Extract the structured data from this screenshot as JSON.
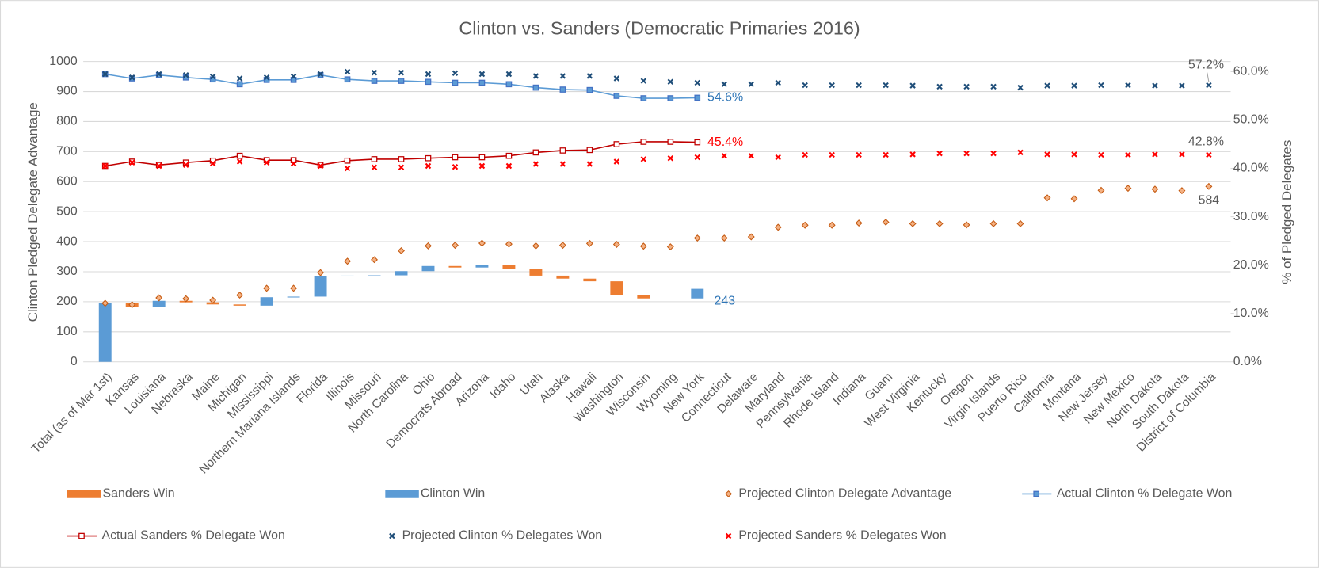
{
  "chart_data": {
    "type": "combo",
    "title": "Clinton vs. Sanders (Democratic Primaries 2016)",
    "ylabel": "Clinton Pledged Delegate Advantage",
    "y2label": "% of Pledged Delegates",
    "categories": [
      "Total (as of Mar 1st)",
      "Kansas",
      "Louisiana",
      "Nebraska",
      "Maine",
      "Michigan",
      "Mississippi",
      "Northern Mariana Islands",
      "Florida",
      "Illinois",
      "Missouri",
      "North Carolina",
      "Ohio",
      "Democrats Abroad",
      "Arizona",
      "Idaho",
      "Utah",
      "Alaska",
      "Hawaii",
      "Washington",
      "Wisconsin",
      "Wyoming",
      "New York",
      "Connecticut",
      "Delaware",
      "Maryland",
      "Pennsylvania",
      "Rhode Island",
      "Indiana",
      "Guam",
      "West Virginia",
      "Kentucky",
      "Oregon",
      "Virgin Islands",
      "Puerto Rico",
      "California",
      "Montana",
      "New Jersey",
      "New Mexico",
      "North Dakota",
      "South Dakota",
      "District of Columbia"
    ],
    "ylim": [
      0,
      1000
    ],
    "yticks": [
      0,
      100,
      200,
      300,
      400,
      500,
      600,
      700,
      800,
      900,
      1000
    ],
    "y2lim": [
      0,
      62.1
    ],
    "y2ticks": [
      {
        "value": 0,
        "label": "0.0%"
      },
      {
        "value": 10,
        "label": "10.0%"
      },
      {
        "value": 20,
        "label": "20.0%"
      },
      {
        "value": 30,
        "label": "30.0%"
      },
      {
        "value": 40,
        "label": "40.0%"
      },
      {
        "value": 50,
        "label": "50.0%"
      },
      {
        "value": 60,
        "label": "60.0%"
      }
    ],
    "grid": true,
    "legend": "bottom",
    "series": [
      {
        "name": "Sanders Win",
        "type": "waterfall",
        "color": "#ED7D31",
        "values": [
          null,
          -13,
          null,
          -5,
          -7,
          -4,
          null,
          null,
          null,
          null,
          null,
          null,
          null,
          -5,
          null,
          -13,
          -22,
          -10,
          -9,
          -47,
          -10,
          null,
          null,
          null,
          null,
          null,
          null,
          null,
          null,
          null,
          null,
          null,
          null,
          null,
          null,
          null,
          null,
          null,
          null,
          null,
          null,
          null
        ]
      },
      {
        "name": "Clinton Win",
        "type": "waterfall",
        "color": "#5B9BD5",
        "values": [
          195,
          null,
          21,
          null,
          null,
          null,
          28,
          2,
          68,
          2,
          1,
          14,
          17,
          null,
          8,
          null,
          null,
          null,
          null,
          null,
          null,
          null,
          32,
          null,
          null,
          null,
          null,
          null,
          null,
          null,
          null,
          null,
          null,
          null,
          null,
          null,
          null,
          null,
          null,
          null,
          null,
          null
        ]
      },
      {
        "name": "Projected Clinton Delegate Advantage",
        "type": "scatter",
        "marker": "diamond",
        "color": "#C55A11",
        "values": [
          195,
          190,
          213,
          210,
          205,
          222,
          245,
          245,
          297,
          335,
          340,
          370,
          386,
          388,
          395,
          392,
          386,
          388,
          394,
          391,
          385,
          383,
          412,
          412,
          416,
          448,
          455,
          455,
          462,
          465,
          460,
          460,
          456,
          460,
          460,
          546,
          543,
          571,
          578,
          575,
          570,
          584
        ],
        "value_labels": [
          null,
          null,
          null,
          null,
          null,
          null,
          null,
          null,
          null,
          null,
          null,
          null,
          null,
          null,
          null,
          null,
          null,
          null,
          null,
          null,
          null,
          null,
          null,
          null,
          null,
          null,
          null,
          null,
          null,
          null,
          null,
          null,
          null,
          null,
          null,
          null,
          null,
          null,
          null,
          null,
          null,
          "584"
        ]
      },
      {
        "name": "Actual Clinton % Delegate Won",
        "type": "line",
        "marker": "square",
        "color": "#5B9BD5",
        "axis": "y2",
        "values": [
          59.5,
          58.6,
          59.3,
          58.8,
          58.4,
          57.4,
          58.3,
          58.3,
          59.3,
          58.4,
          58.1,
          58.1,
          57.9,
          57.7,
          57.7,
          57.4,
          56.7,
          56.3,
          56.2,
          55.0,
          54.5,
          54.5,
          54.6,
          null,
          null,
          null,
          null,
          null,
          null,
          null,
          null,
          null,
          null,
          null,
          null,
          null,
          null,
          null,
          null,
          null,
          null,
          null
        ],
        "value_labels": [
          null,
          null,
          null,
          null,
          null,
          null,
          null,
          null,
          null,
          null,
          null,
          null,
          null,
          null,
          null,
          null,
          null,
          null,
          null,
          null,
          null,
          null,
          "54.6%",
          null,
          null,
          null,
          null,
          null,
          null,
          null,
          null,
          null,
          null,
          null,
          null,
          null,
          null,
          null,
          null,
          null,
          null,
          null
        ]
      },
      {
        "name": "Actual Sanders % Delegate Won",
        "type": "line",
        "marker": "square",
        "color": "#C00000",
        "axis": "y2",
        "values": [
          40.5,
          41.4,
          40.7,
          41.2,
          41.6,
          42.6,
          41.7,
          41.7,
          40.7,
          41.6,
          41.9,
          41.9,
          42.1,
          42.3,
          42.3,
          42.6,
          43.3,
          43.7,
          43.8,
          45.0,
          45.5,
          45.5,
          45.4,
          null,
          null,
          null,
          null,
          null,
          null,
          null,
          null,
          null,
          null,
          null,
          null,
          null,
          null,
          null,
          null,
          null,
          null,
          null
        ],
        "value_labels": [
          null,
          null,
          null,
          null,
          null,
          null,
          null,
          null,
          null,
          null,
          null,
          null,
          null,
          null,
          null,
          null,
          null,
          null,
          null,
          null,
          null,
          null,
          "45.4%",
          null,
          null,
          null,
          null,
          null,
          null,
          null,
          null,
          null,
          null,
          null,
          null,
          null,
          null,
          null,
          null,
          null,
          null,
          null
        ]
      },
      {
        "name": "Projected Clinton % Delegates Won",
        "type": "scatter",
        "marker": "x",
        "color": "#1F4E79",
        "axis": "y2",
        "values": [
          59.5,
          58.8,
          59.5,
          59.3,
          59.0,
          58.6,
          58.8,
          59.0,
          59.5,
          60.0,
          59.8,
          59.8,
          59.5,
          59.7,
          59.5,
          59.5,
          59.1,
          59.1,
          59.1,
          58.6,
          58.1,
          57.9,
          57.7,
          57.4,
          57.4,
          57.7,
          57.2,
          57.2,
          57.2,
          57.2,
          57.1,
          56.9,
          56.9,
          56.9,
          56.7,
          57.1,
          57.1,
          57.2,
          57.2,
          57.1,
          57.1,
          57.2
        ],
        "value_labels": [
          null,
          null,
          null,
          null,
          null,
          null,
          null,
          null,
          null,
          null,
          null,
          null,
          null,
          null,
          null,
          null,
          null,
          null,
          null,
          null,
          null,
          null,
          null,
          null,
          null,
          null,
          null,
          null,
          null,
          null,
          null,
          null,
          null,
          null,
          null,
          null,
          null,
          null,
          null,
          null,
          null,
          "57.2%"
        ]
      },
      {
        "name": "Projected Sanders % Delegates Won",
        "type": "scatter",
        "marker": "x",
        "color": "#FF0000",
        "axis": "y2",
        "values": [
          40.5,
          41.2,
          40.5,
          40.7,
          41.0,
          41.4,
          41.2,
          41.0,
          40.5,
          40.0,
          40.2,
          40.2,
          40.5,
          40.3,
          40.5,
          40.5,
          40.9,
          40.9,
          40.9,
          41.4,
          41.9,
          42.1,
          42.3,
          42.6,
          42.6,
          42.3,
          42.8,
          42.8,
          42.8,
          42.8,
          42.9,
          43.1,
          43.1,
          43.1,
          43.3,
          42.9,
          42.9,
          42.8,
          42.8,
          42.9,
          42.9,
          42.8
        ],
        "value_labels": [
          null,
          null,
          null,
          null,
          null,
          null,
          null,
          null,
          null,
          null,
          null,
          null,
          null,
          null,
          null,
          null,
          null,
          null,
          null,
          null,
          null,
          null,
          null,
          null,
          null,
          null,
          null,
          null,
          null,
          null,
          null,
          null,
          null,
          null,
          null,
          null,
          null,
          null,
          null,
          null,
          null,
          "42.8%"
        ]
      }
    ],
    "annotations": [
      {
        "text": "243",
        "category": "New York",
        "value": 243
      }
    ]
  }
}
